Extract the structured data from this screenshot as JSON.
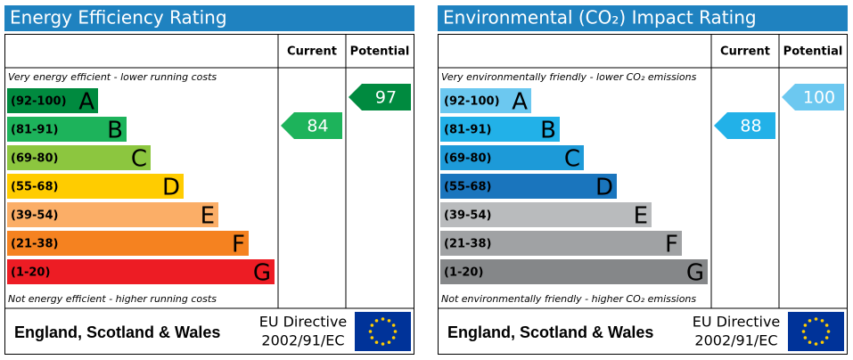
{
  "panels": [
    {
      "title": "Energy Efficiency Rating",
      "current_header": "Current",
      "potential_header": "Potential",
      "top_note": "Very energy efficient - lower running costs",
      "bottom_note": "Not energy efficient - higher running costs",
      "bands": [
        {
          "range": "(92-100)",
          "letter": "A",
          "color": "#008a3f"
        },
        {
          "range": "(81-91)",
          "letter": "B",
          "color": "#1db35b"
        },
        {
          "range": "(69-80)",
          "letter": "C",
          "color": "#8cc63f"
        },
        {
          "range": "(55-68)",
          "letter": "D",
          "color": "#ffcc00"
        },
        {
          "range": "(39-54)",
          "letter": "E",
          "color": "#fbae67"
        },
        {
          "range": "(21-38)",
          "letter": "F",
          "color": "#f58220"
        },
        {
          "range": "(1-20)",
          "letter": "G",
          "color": "#ed1c24"
        }
      ],
      "current": 84,
      "potential": 97,
      "region": "England, Scotland & Wales",
      "directive": [
        "EU Directive",
        "2002/91/EC"
      ]
    },
    {
      "title": "Environmental (CO₂) Impact Rating",
      "current_header": "Current",
      "potential_header": "Potential",
      "top_note": "Very environmentally friendly - lower CO₂ emissions",
      "bottom_note": "Not environmentally friendly - higher CO₂ emissions",
      "bands": [
        {
          "range": "(92-100)",
          "letter": "A",
          "color": "#6cc8f0"
        },
        {
          "range": "(81-91)",
          "letter": "B",
          "color": "#22b1e8"
        },
        {
          "range": "(69-80)",
          "letter": "C",
          "color": "#1d9ad8"
        },
        {
          "range": "(55-68)",
          "letter": "D",
          "color": "#1a75bd"
        },
        {
          "range": "(39-54)",
          "letter": "E",
          "color": "#b9bbbd"
        },
        {
          "range": "(21-38)",
          "letter": "F",
          "color": "#a0a2a4"
        },
        {
          "range": "(1-20)",
          "letter": "G",
          "color": "#858789"
        }
      ],
      "current": 88,
      "potential": 100,
      "region": "England, Scotland & Wales",
      "directive": [
        "EU Directive",
        "2002/91/EC"
      ]
    }
  ]
}
